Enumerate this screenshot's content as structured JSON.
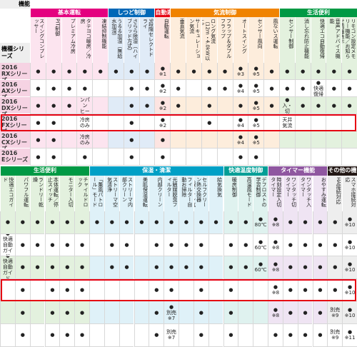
{
  "header": {
    "function_label": "機能",
    "model_label": "機種シリーズ"
  },
  "rows": [
    {
      "year": "2016",
      "name": "RXシリーズ"
    },
    {
      "year": "2016",
      "name": "AXシリーズ"
    },
    {
      "year": "2016",
      "name": "DXシリーズ"
    },
    {
      "year": "2016",
      "name": "FXシリーズ"
    },
    {
      "year": "2016",
      "name": "CXシリーズ"
    },
    {
      "year": "2016",
      "name": "Eシリーズ"
    }
  ],
  "highlight_row": 3,
  "highlight_color": "#e60012",
  "top": {
    "groups": [
      {
        "name": "基本運転",
        "color": "#e4007f",
        "light": "#fce4ef",
        "columns": [
          "スイングコンプレッサー",
          "PIT制御",
          "プレミアム冷房",
          "タテヨコ暖房／冷房",
          "凍結抑制機能"
        ]
      },
      {
        "name": "しつど制御",
        "color": "#0068b7",
        "light": "#e0ebf7",
        "columns": [
          "うるる加湿（無給水加湿）",
          "さらら除湿（ハイブリッド方式）",
          "9段階セレクトドライ"
        ]
      },
      {
        "name": "自動運転",
        "color": "#e60012",
        "light": "#fde4e1",
        "columns": [
          "自動運転"
        ]
      },
      {
        "name": "気流制御",
        "color": "#f08300",
        "light": "#fdeddc",
        "columns": [
          "垂直気流",
          "サーキュレーション気流",
          "ロング気流（12m・4.0kW以上）",
          "フラップ＆ダブルフラップ",
          "オートスイング",
          "センサー風向",
          "風ないス運転"
        ]
      },
      {
        "name": "生活便利",
        "color": "#009944",
        "light": "#e3f1de",
        "columns": [
          "センサー制御",
          "消し忘れ防止機能",
          "快適エコ自動復帰",
          "音声アドバイス機能",
          "リモコン設定メモリー機能／お知らせ情報表示"
        ]
      }
    ],
    "cells": [
      [
        "●",
        "●",
        "●",
        "●",
        "●",
        "●",
        "●",
        "●",
        "●\n※1",
        "●",
        "●",
        "●",
        "●",
        "●\n※3",
        "●\n※5",
        "●",
        "●",
        "●",
        "●",
        "●",
        "●"
      ],
      [
        "●",
        "●",
        "●",
        "●",
        null,
        null,
        "●",
        "●",
        "●\n※2",
        "●",
        null,
        "●",
        "●",
        "●\n※4",
        "●\n※5",
        "●",
        "●",
        "●",
        "●\n快適復帰",
        "●",
        "●"
      ],
      [
        "●",
        "●",
        "●",
        "●\nドレンパン\nヒーター付",
        null,
        null,
        "●",
        "●",
        "●\n※2",
        "●",
        null,
        "●",
        null,
        "●",
        "●\n※5",
        "●",
        "●\n入・切",
        "●",
        "●",
        "●",
        "●"
      ],
      [
        "●",
        "●",
        null,
        "冷房のみ",
        null,
        null,
        "●",
        null,
        "●\n※2",
        null,
        null,
        "●",
        null,
        "●\n※4",
        "●\n※5",
        null,
        "天井気流",
        null,
        null,
        null,
        null
      ],
      [
        "●",
        "●",
        null,
        "冷房のみ",
        null,
        null,
        "●",
        null,
        "●",
        null,
        null,
        null,
        null,
        "●\n※4",
        "●\n※5",
        null,
        null,
        null,
        null,
        null,
        null
      ],
      [
        "●",
        "●",
        null,
        "●",
        null,
        null,
        "●",
        null,
        "●",
        null,
        null,
        null,
        null,
        "●",
        "●",
        null,
        null,
        null,
        null,
        null,
        null
      ]
    ]
  },
  "bottom": {
    "groups": [
      {
        "name": "生活便利",
        "color": "#009944",
        "light": "#e3f1de",
        "columns": [
          "快適エコガイド",
          "パワフル運転",
          "ランドリー乾燥",
          "本体運転／停止スイッチ",
          "モニター入切",
          "チャイルドロック"
        ]
      },
      {
        "name": "保湿・清潔",
        "color": "#00a0c6",
        "light": "#dff1f8",
        "columns": [
          "「薫風パトロール」モード",
          "ストリーマ空気清浄",
          "ストリーマ内部クリーン",
          "美肌保湿運転",
          "内部クリーン",
          "光触媒脱臭フィルター",
          "フィルター自動お掃除",
          "セルフクリーン熱交換器（銀イオン抗菌）",
          "給気換気"
        ]
      },
      {
        "name": "快適温度制御",
        "color": "#009e96",
        "light": "#dff2ef",
        "columns": [
          "暖房制御",
          "高温風モード",
          "デフロストの学習制御"
        ]
      },
      {
        "name": "タイマー機能",
        "color": "#8f57a0",
        "light": "#efe4f3",
        "columns": [
          "時刻設定入切タイマー",
          "ワンタッチ切タイマー",
          "ワンタッチ入タイマー",
          "おやすみ運転"
        ]
      },
      {
        "name": "その他の機能",
        "color": "#231815",
        "light": "#eeeeee",
        "columns": [
          "HA接続対応",
          "スマホ接続対応"
        ]
      }
    ],
    "cells": [
      [
        "●",
        "●",
        "●",
        "●",
        "●",
        "●",
        "●",
        "●",
        "●",
        "●",
        "●",
        "●",
        "●",
        "●",
        "●",
        "●",
        "●",
        "●\n80℃",
        "●\n※8",
        "●",
        "●",
        "●",
        "●",
        "●\n※10"
      ],
      [
        "●\n快適自動ガイド",
        "●",
        "●",
        "●",
        "●",
        "●",
        null,
        "●",
        "●",
        null,
        "●",
        "●",
        "●",
        "●",
        null,
        "●",
        "●",
        "●\n60℃",
        "●\n※8",
        "●",
        "●",
        "●",
        "●",
        "●\n※10"
      ],
      [
        "●\n快適自動ガイド",
        "●",
        "●",
        "●",
        "●",
        "●",
        null,
        "●",
        "●",
        null,
        "●",
        "●",
        "●",
        "●",
        null,
        "●",
        "●",
        "●\n60℃",
        "●\n※8",
        "●",
        "●",
        "●",
        "●",
        "●\n※10"
      ],
      [
        null,
        "●",
        null,
        "●",
        "●",
        "●",
        null,
        null,
        null,
        null,
        "●",
        "●",
        null,
        "●",
        null,
        "●",
        null,
        null,
        "●\n※8",
        "●",
        "●",
        "●",
        "●",
        "●\n※10"
      ],
      [
        null,
        "●",
        null,
        "●",
        "●",
        "●",
        null,
        null,
        null,
        null,
        "●",
        "●\n別売\n※7",
        null,
        "●",
        null,
        "●",
        null,
        null,
        "●\n※8",
        "●",
        "●",
        "●",
        "別売\n※9",
        "●\n※10"
      ],
      [
        null,
        "●",
        null,
        "●",
        "●",
        "●",
        null,
        null,
        null,
        null,
        "●",
        "別売\n※7",
        null,
        "●",
        null,
        "●",
        null,
        null,
        "●",
        "●",
        "●",
        "●",
        "別売\n※9",
        "●\n※11"
      ]
    ]
  }
}
